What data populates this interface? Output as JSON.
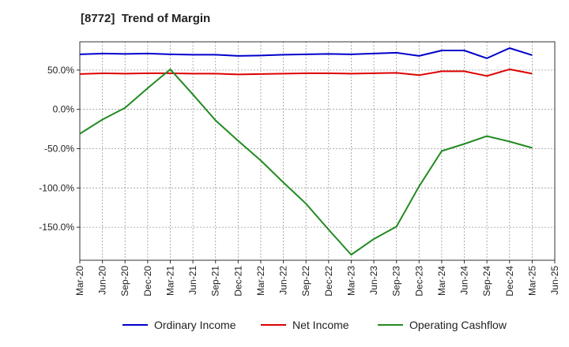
{
  "chart_data": {
    "type": "line",
    "title": "[8772]  Trend of Margin",
    "xlabel": "",
    "ylabel": "",
    "x_ticks": [
      "Mar-20",
      "Jun-20",
      "Sep-20",
      "Dec-20",
      "Mar-21",
      "Jun-21",
      "Sep-21",
      "Dec-21",
      "Mar-22",
      "Jun-22",
      "Sep-22",
      "Dec-22",
      "Mar-23",
      "Jun-23",
      "Sep-23",
      "Dec-23",
      "Mar-24",
      "Jun-24",
      "Sep-24",
      "Dec-24",
      "Mar-25",
      "Jun-25"
    ],
    "y_ticks": [
      "50.0%",
      "0.0%",
      "-50.0%",
      "-100.0%",
      "-150.0%"
    ],
    "y_tick_values": [
      50,
      0,
      -50,
      -100,
      -150
    ],
    "ylim": [
      -192,
      86
    ],
    "grid": true,
    "legend_position": "bottom",
    "x": [
      "Mar-20",
      "Jun-20",
      "Sep-20",
      "Dec-20",
      "Mar-21",
      "Jun-21",
      "Sep-21",
      "Dec-21",
      "Mar-22",
      "Jun-22",
      "Sep-22",
      "Dec-22",
      "Mar-23",
      "Jun-23",
      "Sep-23",
      "Dec-23",
      "Mar-24",
      "Jun-24",
      "Sep-24",
      "Dec-24",
      "Mar-25"
    ],
    "series": [
      {
        "name": "Ordinary Income",
        "color": "#0000cc",
        "values": [
          70,
          71,
          70.5,
          71,
          70,
          69.5,
          69.5,
          68,
          68.5,
          69.5,
          70,
          70.5,
          70,
          71,
          72,
          68,
          75,
          75,
          65,
          78,
          69
        ]
      },
      {
        "name": "Net Income",
        "color": "#dd0000",
        "values": [
          45,
          46,
          45.5,
          46,
          46,
          45.5,
          45.5,
          44.5,
          45,
          45.5,
          46,
          46,
          45.5,
          46,
          46.5,
          43.5,
          48.5,
          48.5,
          42.5,
          51,
          45.5
        ]
      },
      {
        "name": "Operating Cashflow",
        "color": "#228b22",
        "values": [
          -31,
          -13,
          2,
          27,
          51,
          19,
          -14,
          -40,
          -65,
          -93,
          -120,
          -153,
          -185,
          -165,
          -149,
          -98,
          -53,
          -44,
          -34,
          -41,
          -49
        ]
      }
    ]
  }
}
